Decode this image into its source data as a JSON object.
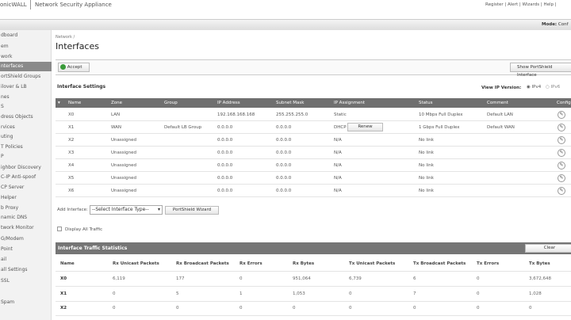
{
  "header": {
    "brand": "onicWALL",
    "product": "Network Security Appliance",
    "links": [
      "Register",
      "Alert",
      "Wizards",
      "Help"
    ],
    "mode_label": "Mode:",
    "mode_value": "Conf"
  },
  "sidebar": {
    "items": [
      "dboard",
      "em",
      "work",
      "nterfaces",
      "ortShield Groups",
      "ilover & LB",
      "nes",
      "S",
      "dress Objects",
      "rvices",
      "uting",
      "T Policies",
      "P",
      "ighbor Discovery",
      "C-IP Anti-spoof",
      "CP Server",
      "Helper",
      "b Proxy",
      "namic DNS",
      "twork Monitor",
      "G/Modem",
      "Point",
      "ail",
      "all Settings",
      "SSL",
      "",
      "Spam"
    ],
    "selected": 3
  },
  "breadcrumb": "Network /",
  "title": "Interfaces",
  "toolbar": {
    "accept": "Accept",
    "show_portshield": "Show PortShield Interface"
  },
  "settings": {
    "heading": "Interface Settings",
    "ip_version_label": "View IP Version:",
    "ipv4": "IPv4",
    "ipv6": "IPv6",
    "selected": "IPv4",
    "columns": [
      "Name",
      "Zone",
      "Group",
      "IP Address",
      "Subnet Mask",
      "IP Assignment",
      "Status",
      "Comment",
      "Configure"
    ],
    "rows": [
      [
        "X0",
        "LAN",
        "",
        "192.168.168.168",
        "255.255.255.0",
        "Static",
        "10 Mbps Full Duplex",
        "Default LAN"
      ],
      [
        "X1",
        "WAN",
        "Default LB Group",
        "0.0.0.0",
        "0.0.0.0",
        "DHCP",
        "1 Gbps Full Duplex",
        "Default WAN"
      ],
      [
        "X2",
        "Unassigned",
        "",
        "0.0.0.0",
        "0.0.0.0",
        "N/A",
        "No link",
        ""
      ],
      [
        "X3",
        "Unassigned",
        "",
        "0.0.0.0",
        "0.0.0.0",
        "N/A",
        "No link",
        ""
      ],
      [
        "X4",
        "Unassigned",
        "",
        "0.0.0.0",
        "0.0.0.0",
        "N/A",
        "No link",
        ""
      ],
      [
        "X5",
        "Unassigned",
        "",
        "0.0.0.0",
        "0.0.0.0",
        "N/A",
        "No link",
        ""
      ],
      [
        "X6",
        "Unassigned",
        "",
        "0.0.0.0",
        "0.0.0.0",
        "N/A",
        "No link",
        ""
      ]
    ],
    "renew": "Renew",
    "add_interface_label": "Add Interface:",
    "add_interface_select": "--Select Interface Type--",
    "portshield_wizard": "PortShield Wizard",
    "display_all_traffic": "Display All Traffic"
  },
  "stats": {
    "heading": "Interface Traffic Statistics",
    "clear": "Clear",
    "columns": [
      "Name",
      "Rx Unicast Packets",
      "Rx Broadcast Packets",
      "Rx Errors",
      "Rx Bytes",
      "Tx Unicast Packets",
      "Tx Broadcast Packets",
      "Tx Errors",
      "Tx Bytes"
    ],
    "rows": [
      [
        "X0",
        "6,119",
        "177",
        "0",
        "951,064",
        "6,739",
        "6",
        "0",
        "3,672,648"
      ],
      [
        "X1",
        "0",
        "5",
        "1",
        "1,053",
        "0",
        "7",
        "0",
        "1,028"
      ],
      [
        "X2",
        "0",
        "0",
        "0",
        "0",
        "0",
        "0",
        "0",
        "0"
      ]
    ]
  }
}
